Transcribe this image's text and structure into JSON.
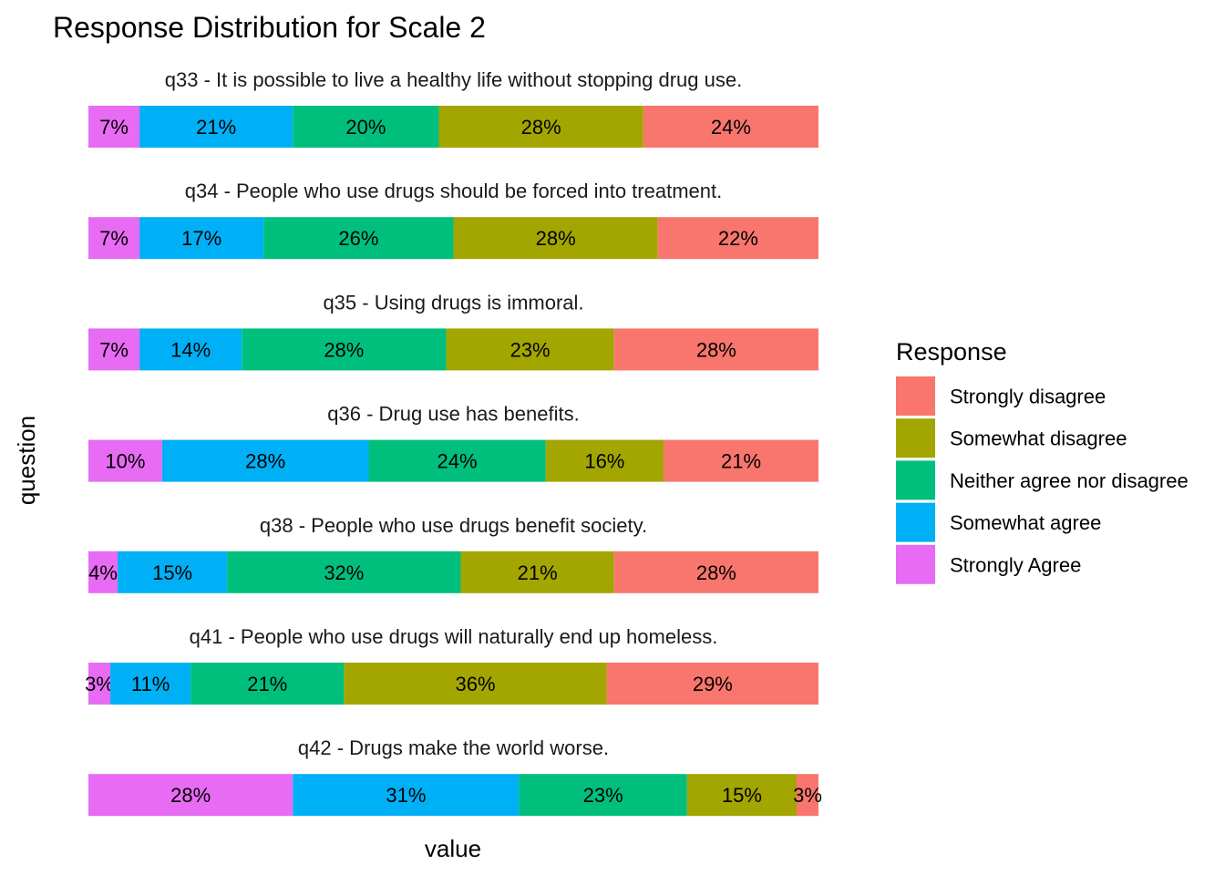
{
  "chart_data": {
    "type": "bar",
    "orientation": "horizontal",
    "stacked": true,
    "title": "Response Distribution for Scale 2",
    "xlabel": "value",
    "ylabel": "question",
    "grid": false,
    "legend": {
      "title": "Response",
      "placement": "right"
    },
    "series": [
      {
        "name": "Strongly Agree",
        "color": "#E76BF3"
      },
      {
        "name": "Somewhat agree",
        "color": "#00B0F6"
      },
      {
        "name": "Neither agree nor disagree",
        "color": "#00BF7D"
      },
      {
        "name": "Somewhat disagree",
        "color": "#A3A500"
      },
      {
        "name": "Strongly disagree",
        "color": "#F8766D"
      }
    ],
    "legend_order": [
      "Strongly disagree",
      "Somewhat disagree",
      "Neither agree nor disagree",
      "Somewhat agree",
      "Strongly Agree"
    ],
    "facets": [
      {
        "title": "q33 - It is possible to live a healthy life without stopping drug use.",
        "values": [
          7,
          21,
          20,
          28,
          24
        ],
        "labels": [
          "7%",
          "21%",
          "20%",
          "28%",
          "24%"
        ]
      },
      {
        "title": "q34 - People who use drugs should be forced into treatment.",
        "values": [
          7,
          17,
          26,
          28,
          22
        ],
        "labels": [
          "7%",
          "17%",
          "26%",
          "28%",
          "22%"
        ]
      },
      {
        "title": "q35 - Using drugs is immoral.",
        "values": [
          7,
          14,
          28,
          23,
          28
        ],
        "labels": [
          "7%",
          "14%",
          "28%",
          "23%",
          "28%"
        ]
      },
      {
        "title": "q36 - Drug use has benefits.",
        "values": [
          10,
          28,
          24,
          16,
          21
        ],
        "labels": [
          "10%",
          "28%",
          "24%",
          "16%",
          "21%"
        ]
      },
      {
        "title": "q38 - People who use drugs benefit society.",
        "values": [
          4,
          15,
          32,
          21,
          28
        ],
        "labels": [
          "4%",
          "15%",
          "32%",
          "21%",
          "28%"
        ]
      },
      {
        "title": "q41 - People who use drugs will naturally end up homeless.",
        "values": [
          3,
          11,
          21,
          36,
          29
        ],
        "labels": [
          "3%",
          "11%",
          "21%",
          "36%",
          "29%"
        ]
      },
      {
        "title": "q42 - Drugs make the world worse.",
        "values": [
          28,
          31,
          23,
          15,
          3
        ],
        "labels": [
          "28%",
          "31%",
          "23%",
          "15%",
          "3%"
        ]
      }
    ]
  }
}
